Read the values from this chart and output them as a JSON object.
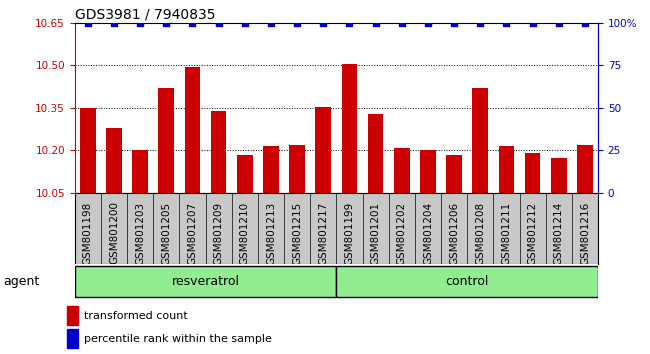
{
  "title": "GDS3981 / 7940835",
  "samples": [
    "GSM801198",
    "GSM801200",
    "GSM801203",
    "GSM801205",
    "GSM801207",
    "GSM801209",
    "GSM801210",
    "GSM801213",
    "GSM801215",
    "GSM801217",
    "GSM801199",
    "GSM801201",
    "GSM801202",
    "GSM801204",
    "GSM801206",
    "GSM801208",
    "GSM801211",
    "GSM801212",
    "GSM801214",
    "GSM801216"
  ],
  "values": [
    10.35,
    10.28,
    10.2,
    10.42,
    10.495,
    10.34,
    10.185,
    10.215,
    10.22,
    10.355,
    10.505,
    10.33,
    10.21,
    10.2,
    10.185,
    10.42,
    10.215,
    10.19,
    10.175,
    10.22
  ],
  "percentile_ranks": [
    100,
    100,
    100,
    100,
    100,
    100,
    100,
    100,
    100,
    100,
    100,
    100,
    100,
    100,
    100,
    100,
    100,
    100,
    100,
    100
  ],
  "groups": [
    "resveratrol",
    "resveratrol",
    "resveratrol",
    "resveratrol",
    "resveratrol",
    "resveratrol",
    "resveratrol",
    "resveratrol",
    "resveratrol",
    "resveratrol",
    "control",
    "control",
    "control",
    "control",
    "control",
    "control",
    "control",
    "control",
    "control",
    "control"
  ],
  "bar_color": "#CC0000",
  "percentile_color": "#0000CC",
  "ylim_left": [
    10.05,
    10.65
  ],
  "ylim_right": [
    0,
    100
  ],
  "yticks_left": [
    10.05,
    10.2,
    10.35,
    10.5,
    10.65
  ],
  "yticks_right": [
    0,
    25,
    50,
    75,
    100
  ],
  "ytick_labels_right": [
    "0",
    "25",
    "50",
    "75",
    "100%"
  ],
  "bar_width": 0.6,
  "sample_bg_color": "#C8C8C8",
  "group_color": "#90EE90",
  "xlabel_agent": "agent",
  "legend_items": [
    "transformed count",
    "percentile rank within the sample"
  ],
  "title_fontsize": 10,
  "tick_fontsize": 7.5,
  "label_fontsize": 9
}
